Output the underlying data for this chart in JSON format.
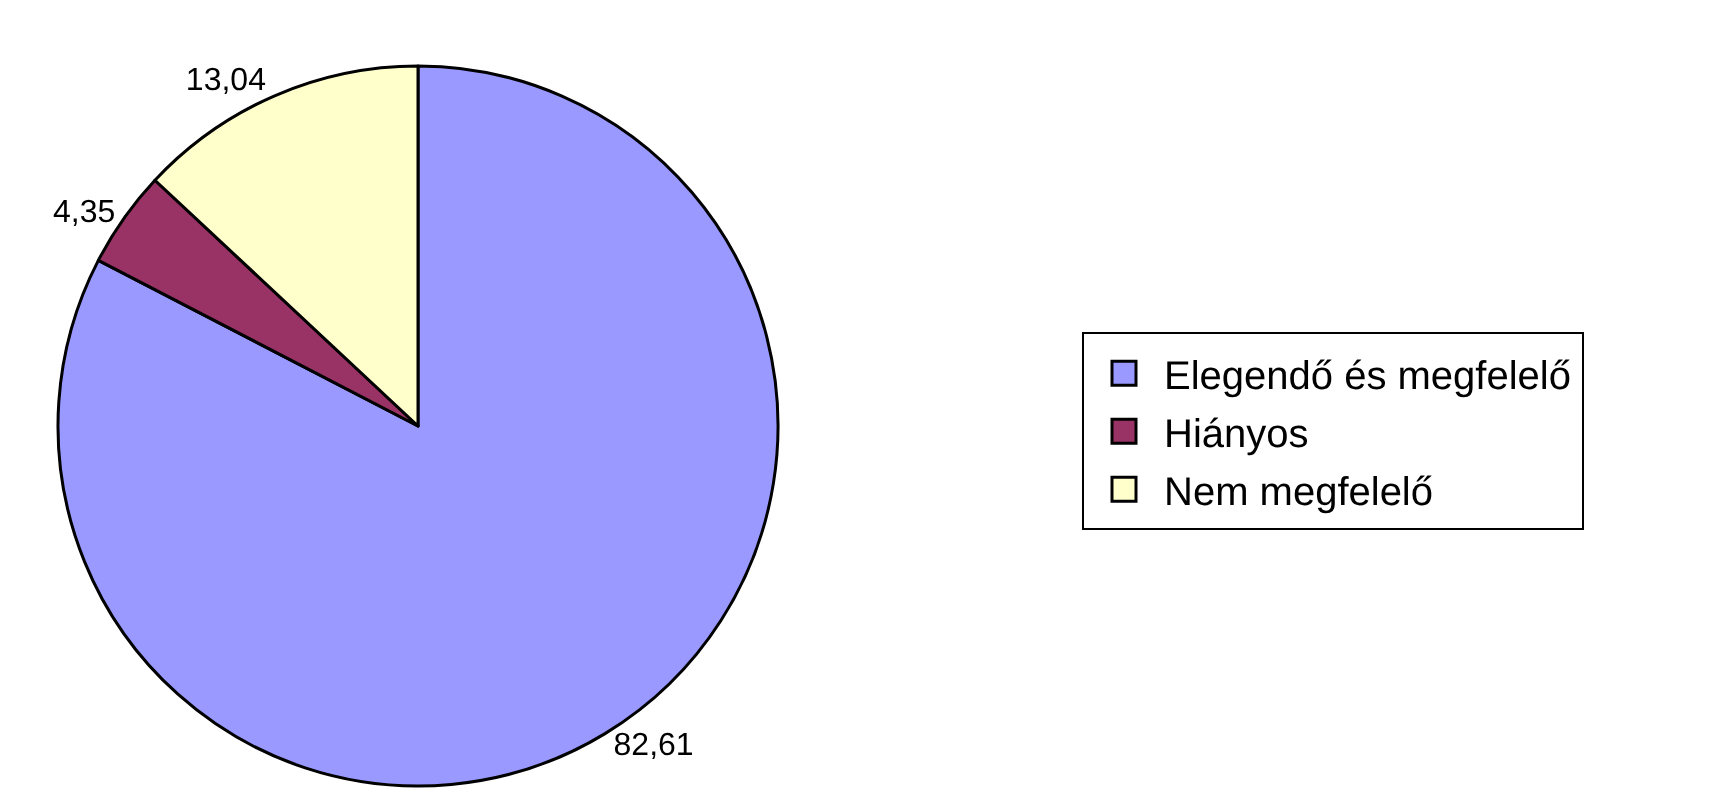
{
  "chart_data": {
    "type": "pie",
    "categories": [
      "Elegendő és megfelelő",
      "Hiányos",
      "Nem megfelelő"
    ],
    "values": [
      82.61,
      4.35,
      13.04
    ],
    "colors": [
      "#9999ff",
      "#993366",
      "#ffffcc"
    ],
    "value_labels": [
      "82,61",
      "4,35",
      "13,04"
    ],
    "legend": "right"
  }
}
